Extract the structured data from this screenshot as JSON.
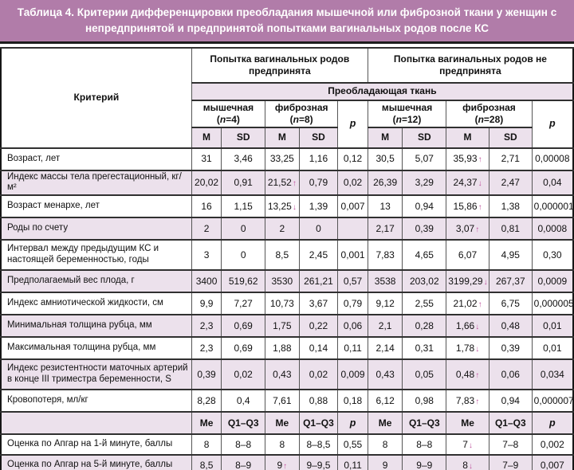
{
  "title": "Таблица 4. Критерии дифференцировки преобладания мышечной или фиброзной ткани у женщин с непредпринятой и предпринятой попытками вагинальных родов после КС",
  "colors": {
    "title_bar": "#b17ca9",
    "row_shade": "#ece1ec",
    "arrow_up_down": "#c0549f"
  },
  "header": {
    "criterion": "Критерий",
    "group_attempted": "Попытка вагинальных родов предпринята",
    "group_not_attempted": "Попытка вагинальных родов не предпринята",
    "tissue_band": "Преобладающая ткань",
    "subgroups": [
      {
        "name": "мышечная",
        "n": "4"
      },
      {
        "name": "фиброзная",
        "n": "8"
      },
      {
        "name": "мышечная",
        "n": "12"
      },
      {
        "name": "фиброзная",
        "n": "28"
      }
    ],
    "p_label": "p",
    "stat_labels": [
      "M",
      "SD",
      "M",
      "SD",
      "M",
      "SD",
      "M",
      "SD"
    ]
  },
  "rows": [
    {
      "type": "data",
      "criterion": "Возраст, лет",
      "cells": [
        "31",
        "3,46",
        "33,25",
        "1,16",
        "0,12",
        "30,5",
        "5,07",
        "35,93↑",
        "2,71",
        "0,00008"
      ]
    },
    {
      "type": "data",
      "criterion": "Индекс массы тела прегестационный, кг/м²",
      "cells": [
        "20,02",
        "0,91",
        "21,52↑",
        "0,79",
        "0,02",
        "26,39",
        "3,29",
        "24,37↓",
        "2,47",
        "0,04"
      ]
    },
    {
      "type": "data",
      "criterion": "Возраст менархе, лет",
      "cells": [
        "16",
        "1,15",
        "13,25↓",
        "1,39",
        "0,007",
        "13",
        "0,94",
        "15,86↑",
        "1,38",
        "0,000001"
      ]
    },
    {
      "type": "data",
      "criterion": "Роды по счету",
      "cells": [
        "2",
        "0",
        "2",
        "0",
        "",
        "2,17",
        "0,39",
        "3,07↑",
        "0,81",
        "0,0008"
      ]
    },
    {
      "type": "data",
      "tall": true,
      "criterion": "Интервал между предыдущим КС и настоящей беременностью, годы",
      "cells": [
        "3",
        "0",
        "8,5",
        "2,45",
        "0,001",
        "7,83",
        "4,65",
        "6,07",
        "4,95",
        "0,30"
      ]
    },
    {
      "type": "data",
      "criterion": "Предполагаемый вес плода, г",
      "cells": [
        "3400",
        "519,62",
        "3530",
        "261,21",
        "0,57",
        "3538",
        "203,02",
        "3199,29↓",
        "267,37",
        "0,0009"
      ]
    },
    {
      "type": "data",
      "criterion": "Индекс амниотической жидкости, см",
      "cells": [
        "9,9",
        "7,27",
        "10,73",
        "3,67",
        "0,79",
        "9,12",
        "2,55",
        "21,02↑",
        "6,75",
        "0,000005"
      ]
    },
    {
      "type": "data",
      "criterion": "Минимальная толщина рубца, мм",
      "cells": [
        "2,3",
        "0,69",
        "1,75",
        "0,22",
        "0,06",
        "2,1",
        "0,28",
        "1,66↓",
        "0,48",
        "0,01"
      ]
    },
    {
      "type": "data",
      "criterion": "Максимальная толщина рубца, мм",
      "cells": [
        "2,3",
        "0,69",
        "1,88",
        "0,14",
        "0,11",
        "2,14",
        "0,31",
        "1,78↓",
        "0,39",
        "0,01"
      ]
    },
    {
      "type": "data",
      "tall": true,
      "criterion": "Индекс резистентности маточных артерий в конце III триместра беременности, S",
      "cells": [
        "0,39",
        "0,02",
        "0,43",
        "0,02",
        "0,009",
        "0,43",
        "0,05",
        "0,48↑",
        "0,06",
        "0,034"
      ]
    },
    {
      "type": "data",
      "criterion": "Кровопотеря, мл/кг",
      "cells": [
        "8,28",
        "0,4",
        "7,61",
        "0,88",
        "0,18",
        "6,12",
        "0,98",
        "7,83↑",
        "0,94",
        "0,000007"
      ]
    },
    {
      "type": "subheader",
      "criterion": "",
      "cells": [
        "Me",
        "Q1–Q3",
        "Me",
        "Q1–Q3",
        "p",
        "Me",
        "Q1–Q3",
        "Me",
        "Q1–Q3",
        "p"
      ]
    },
    {
      "type": "data",
      "short": true,
      "criterion": "Оценка по Апгар на 1-й минуте, баллы",
      "cells": [
        "8",
        "8–8",
        "8",
        "8–8,5",
        "0,55",
        "8",
        "8–8",
        "7↓",
        "7–8",
        "0,002"
      ]
    },
    {
      "type": "data",
      "short": true,
      "criterion": "Оценка по Апгар на 5-й минуте, баллы",
      "cells": [
        "8,5",
        "8–9",
        "9↑",
        "9–9,5",
        "0,11",
        "9",
        "9–9",
        "8↓",
        "7–9",
        "0,007"
      ]
    }
  ]
}
